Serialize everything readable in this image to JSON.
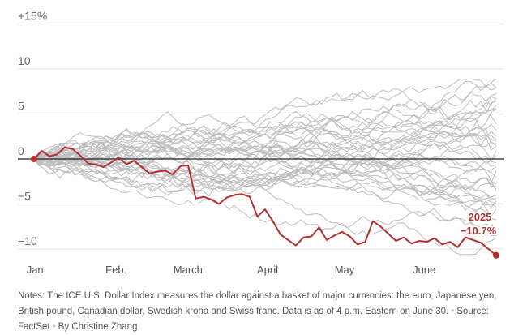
{
  "chart_data": {
    "type": "line",
    "x_labels": [
      "Jan.",
      "Feb.",
      "March",
      "April",
      "May",
      "June"
    ],
    "y_ticks": [
      {
        "value": 15,
        "label": "+15%"
      },
      {
        "value": 10,
        "label": "10"
      },
      {
        "value": 5,
        "label": "5"
      },
      {
        "value": 0,
        "label": "0"
      },
      {
        "value": -5,
        "label": "−5"
      },
      {
        "value": -10,
        "label": "−10"
      }
    ],
    "ylim": [
      -11,
      16
    ],
    "x_range_days": [
      0,
      180
    ],
    "grid": true,
    "highlight": {
      "year": "2025",
      "final_label": "−10.7%",
      "color": "#b0312f",
      "days": [
        0,
        3,
        6,
        9,
        12,
        15,
        18,
        21,
        24,
        27,
        30,
        33,
        36,
        39,
        42,
        45,
        48,
        51,
        54,
        57,
        60,
        63,
        66,
        69,
        72,
        75,
        78,
        81,
        84,
        87,
        90,
        93,
        96,
        99,
        102,
        105,
        108,
        111,
        114,
        117,
        120,
        123,
        126,
        129,
        132,
        135,
        138,
        141,
        144,
        147,
        150,
        153,
        156,
        159,
        162,
        165,
        168,
        171,
        174,
        177,
        180
      ],
      "values": [
        0,
        0.9,
        0.3,
        0.5,
        1.3,
        1.1,
        0.4,
        -0.5,
        -0.6,
        -0.9,
        -0.4,
        0.2,
        -0.6,
        -0.2,
        -0.9,
        -1.6,
        -1.4,
        -1.3,
        -1.7,
        -0.8,
        -0.7,
        -4.4,
        -4.2,
        -4.5,
        -5.0,
        -4.3,
        -4.0,
        -3.9,
        -4.2,
        -6.4,
        -5.6,
        -6.9,
        -8.4,
        -9.0,
        -9.6,
        -8.7,
        -8.6,
        -7.6,
        -9.0,
        -8.5,
        -8.1,
        -8.6,
        -9.5,
        -9.2,
        -6.9,
        -7.5,
        -8.3,
        -9.1,
        -8.7,
        -9.4,
        -9.1,
        -9.2,
        -8.8,
        -9.5,
        -9.2,
        -9.8,
        -8.7,
        -9.0,
        -9.3,
        -10.0,
        -10.7
      ]
    },
    "background_series_count": 40
  },
  "notes": {
    "text": "Notes: The ICE U.S. Dollar Index measures the dollar against a basket of major currencies: the euro, Japanese yen, British pound, Canadian dollar, Swedish krona and Swiss franc. Data is as of 4 p.m. Eastern on June 30.",
    "source": "Source: FactSet",
    "byline": "By Christine Zhang"
  }
}
